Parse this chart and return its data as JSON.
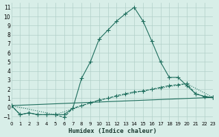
{
  "xlabel": "Humidex (Indice chaleur)",
  "ylabel": "",
  "bg_color": "#d8eee8",
  "grid_color": "#b0cfc8",
  "line_color": "#1a6b5a",
  "xlim": [
    0,
    23
  ],
  "ylim": [
    -1.5,
    11.5
  ],
  "xticks": [
    0,
    1,
    2,
    3,
    4,
    5,
    6,
    7,
    8,
    9,
    10,
    11,
    12,
    13,
    14,
    15,
    16,
    17,
    18,
    19,
    20,
    21,
    22,
    23
  ],
  "yticks": [
    -1,
    0,
    1,
    2,
    3,
    4,
    5,
    6,
    7,
    8,
    9,
    10,
    11
  ],
  "line1_x": [
    0,
    1,
    2,
    3,
    4,
    5,
    6,
    7,
    8,
    9,
    10,
    11,
    12,
    13,
    14,
    15,
    16,
    17,
    18,
    19,
    20,
    21,
    22,
    23
  ],
  "line1_y": [
    0.2,
    -0.8,
    -0.6,
    -0.8,
    -0.8,
    -0.8,
    -0.8,
    -0.1,
    3.2,
    5.0,
    7.5,
    8.5,
    9.5,
    10.3,
    11.0,
    9.5,
    7.3,
    5.0,
    3.3,
    3.3,
    2.4,
    1.5,
    1.2,
    1.1
  ],
  "line2_x": [
    0,
    1,
    2,
    3,
    4,
    5,
    6,
    7,
    8,
    9,
    10,
    11,
    12,
    13,
    14,
    15,
    16,
    17,
    18,
    19,
    20,
    21,
    22,
    23
  ],
  "line2_y": [
    0.2,
    -0.8,
    -0.6,
    -0.8,
    -0.8,
    -0.8,
    -1.1,
    -0.1,
    0.2,
    0.5,
    0.8,
    1.0,
    1.3,
    1.5,
    1.7,
    1.8,
    2.0,
    2.2,
    2.4,
    2.5,
    2.6,
    1.5,
    1.2,
    1.1
  ],
  "line3_x": [
    0,
    5,
    10,
    15,
    20,
    23
  ],
  "line3_y": [
    0.2,
    -0.8,
    0.8,
    1.8,
    2.6,
    1.1
  ],
  "line4_x": [
    0,
    23
  ],
  "line4_y": [
    0.2,
    1.1
  ]
}
